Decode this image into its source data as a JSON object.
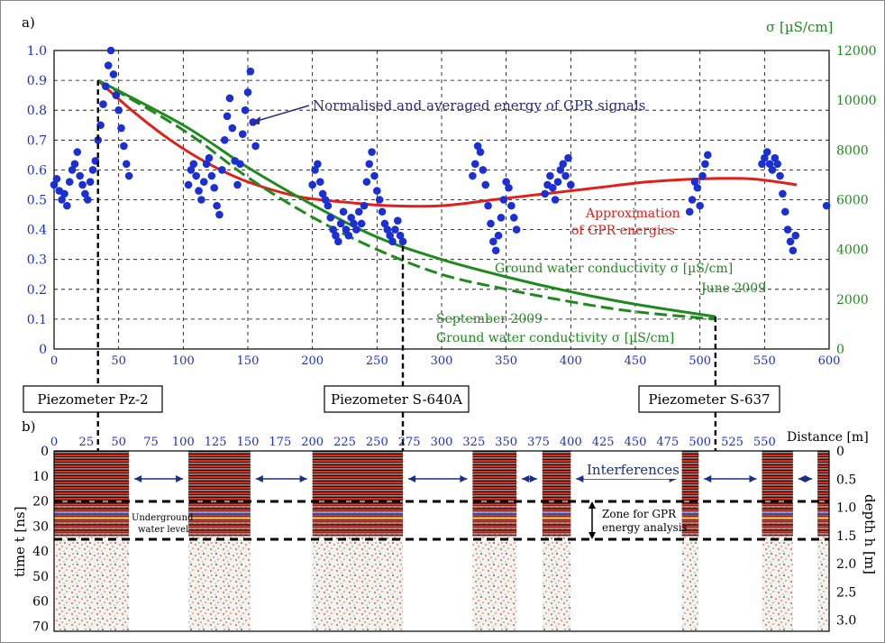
{
  "chart_data": [
    {
      "panel": "a)",
      "type": "scatter",
      "left_axis": {
        "ticks": [
          "0",
          "0.1",
          "0.2",
          "0.3",
          "0.4",
          "0.5",
          "0.6",
          "0.7",
          "0.8",
          "0.9",
          "1.0"
        ],
        "ylim": [
          0,
          1.0
        ]
      },
      "right_axis": {
        "label": "σ [µS/cm]",
        "ticks": [
          "0",
          "2000",
          "4000",
          "6000",
          "8000",
          "10000",
          "12000"
        ],
        "ylim": [
          0,
          12000
        ]
      },
      "x_axis": {
        "ticks": [
          "0",
          "50",
          "100",
          "150",
          "200",
          "250",
          "300",
          "350",
          "400",
          "450",
          "500",
          "550",
          "600"
        ],
        "xlim": [
          0,
          600
        ]
      },
      "grid": true,
      "series": [
        {
          "name": "Normalised and averaged energy of GPR signals",
          "color": "#1a2fd6",
          "kind": "points",
          "points": [
            [
              0,
              0.55
            ],
            [
              2,
              0.57
            ],
            [
              4,
              0.53
            ],
            [
              6,
              0.5
            ],
            [
              8,
              0.52
            ],
            [
              10,
              0.48
            ],
            [
              12,
              0.56
            ],
            [
              14,
              0.6
            ],
            [
              16,
              0.62
            ],
            [
              18,
              0.66
            ],
            [
              20,
              0.58
            ],
            [
              22,
              0.55
            ],
            [
              24,
              0.52
            ],
            [
              26,
              0.5
            ],
            [
              28,
              0.56
            ],
            [
              30,
              0.6
            ],
            [
              32,
              0.63
            ],
            [
              34,
              0.7
            ],
            [
              36,
              0.75
            ],
            [
              38,
              0.82
            ],
            [
              40,
              0.88
            ],
            [
              42,
              0.95
            ],
            [
              44,
              1.0
            ],
            [
              46,
              0.92
            ],
            [
              48,
              0.85
            ],
            [
              50,
              0.8
            ],
            [
              52,
              0.74
            ],
            [
              54,
              0.68
            ],
            [
              56,
              0.62
            ],
            [
              58,
              0.58
            ],
            [
              104,
              0.55
            ],
            [
              106,
              0.6
            ],
            [
              108,
              0.62
            ],
            [
              110,
              0.58
            ],
            [
              112,
              0.53
            ],
            [
              114,
              0.5
            ],
            [
              116,
              0.56
            ],
            [
              118,
              0.62
            ],
            [
              120,
              0.64
            ],
            [
              122,
              0.58
            ],
            [
              124,
              0.54
            ],
            [
              126,
              0.48
            ],
            [
              128,
              0.45
            ],
            [
              130,
              0.6
            ],
            [
              132,
              0.7
            ],
            [
              134,
              0.78
            ],
            [
              136,
              0.84
            ],
            [
              138,
              0.74
            ],
            [
              140,
              0.63
            ],
            [
              142,
              0.55
            ],
            [
              144,
              0.62
            ],
            [
              146,
              0.72
            ],
            [
              148,
              0.8
            ],
            [
              150,
              0.86
            ],
            [
              152,
              0.93
            ],
            [
              154,
              0.76
            ],
            [
              156,
              0.68
            ],
            [
              200,
              0.55
            ],
            [
              202,
              0.6
            ],
            [
              204,
              0.62
            ],
            [
              206,
              0.56
            ],
            [
              208,
              0.52
            ],
            [
              210,
              0.5
            ],
            [
              212,
              0.48
            ],
            [
              214,
              0.44
            ],
            [
              216,
              0.4
            ],
            [
              218,
              0.38
            ],
            [
              220,
              0.36
            ],
            [
              222,
              0.42
            ],
            [
              224,
              0.46
            ],
            [
              226,
              0.4
            ],
            [
              228,
              0.38
            ],
            [
              230,
              0.44
            ],
            [
              232,
              0.42
            ],
            [
              234,
              0.4
            ],
            [
              236,
              0.46
            ],
            [
              238,
              0.42
            ],
            [
              240,
              0.48
            ],
            [
              242,
              0.56
            ],
            [
              244,
              0.62
            ],
            [
              246,
              0.66
            ],
            [
              248,
              0.58
            ],
            [
              250,
              0.53
            ],
            [
              252,
              0.5
            ],
            [
              254,
              0.46
            ],
            [
              256,
              0.42
            ],
            [
              258,
              0.4
            ],
            [
              260,
              0.38
            ],
            [
              262,
              0.36
            ],
            [
              264,
              0.4
            ],
            [
              266,
              0.43
            ],
            [
              268,
              0.38
            ],
            [
              270,
              0.36
            ],
            [
              324,
              0.58
            ],
            [
              326,
              0.62
            ],
            [
              328,
              0.68
            ],
            [
              330,
              0.66
            ],
            [
              332,
              0.6
            ],
            [
              334,
              0.55
            ],
            [
              336,
              0.48
            ],
            [
              338,
              0.42
            ],
            [
              340,
              0.36
            ],
            [
              342,
              0.33
            ],
            [
              344,
              0.38
            ],
            [
              346,
              0.44
            ],
            [
              348,
              0.5
            ],
            [
              350,
              0.56
            ],
            [
              352,
              0.54
            ],
            [
              354,
              0.48
            ],
            [
              356,
              0.44
            ],
            [
              358,
              0.4
            ],
            [
              380,
              0.52
            ],
            [
              382,
              0.55
            ],
            [
              384,
              0.58
            ],
            [
              386,
              0.54
            ],
            [
              388,
              0.5
            ],
            [
              390,
              0.56
            ],
            [
              392,
              0.6
            ],
            [
              394,
              0.62
            ],
            [
              396,
              0.58
            ],
            [
              398,
              0.64
            ],
            [
              400,
              0.55
            ],
            [
              492,
              0.46
            ],
            [
              494,
              0.5
            ],
            [
              496,
              0.56
            ],
            [
              498,
              0.54
            ],
            [
              500,
              0.48
            ],
            [
              502,
              0.58
            ],
            [
              504,
              0.62
            ],
            [
              506,
              0.65
            ],
            [
              548,
              0.62
            ],
            [
              550,
              0.64
            ],
            [
              552,
              0.66
            ],
            [
              554,
              0.62
            ],
            [
              556,
              0.6
            ],
            [
              558,
              0.64
            ],
            [
              560,
              0.62
            ],
            [
              562,
              0.58
            ],
            [
              564,
              0.52
            ],
            [
              566,
              0.46
            ],
            [
              568,
              0.4
            ],
            [
              570,
              0.36
            ],
            [
              572,
              0.33
            ],
            [
              574,
              0.38
            ],
            [
              598,
              0.48
            ]
          ]
        },
        {
          "name": "Approximation of GPR energies",
          "color": "#e0201b",
          "kind": "line",
          "points": [
            [
              34,
              0.9
            ],
            [
              60,
              0.8
            ],
            [
              90,
              0.7
            ],
            [
              120,
              0.62
            ],
            [
              150,
              0.56
            ],
            [
              190,
              0.51
            ],
            [
              230,
              0.49
            ],
            [
              260,
              0.48
            ],
            [
              300,
              0.48
            ],
            [
              340,
              0.5
            ],
            [
              380,
              0.52
            ],
            [
              420,
              0.54
            ],
            [
              460,
              0.56
            ],
            [
              500,
              0.57
            ],
            [
              540,
              0.57
            ],
            [
              575,
              0.55
            ]
          ]
        },
        {
          "name": "Ground water conductivity σ [µS/cm] June 2009",
          "color": "#1e8a1e",
          "kind": "line",
          "axis": "right",
          "points": [
            [
              34,
              10800
            ],
            [
              100,
              9000
            ],
            [
              150,
              7300
            ],
            [
              200,
              5800
            ],
            [
              250,
              4500
            ],
            [
              300,
              3600
            ],
            [
              350,
              2900
            ],
            [
              400,
              2300
            ],
            [
              450,
              1800
            ],
            [
              512,
              1300
            ]
          ]
        },
        {
          "name": "September 2009 Ground water conductivity σ [µS/cm]",
          "color": "#1e8a1e",
          "kind": "dashed",
          "axis": "right",
          "points": [
            [
              34,
              10800
            ],
            [
              100,
              8800
            ],
            [
              150,
              6900
            ],
            [
              200,
              5300
            ],
            [
              250,
              4000
            ],
            [
              300,
              3000
            ],
            [
              350,
              2400
            ],
            [
              400,
              1900
            ],
            [
              450,
              1500
            ],
            [
              512,
              1200
            ]
          ]
        }
      ],
      "annotations": {
        "energy_label": "Normalised and averaged energy of GPR signals",
        "approx_line1": "Approximation",
        "approx_line2": "of GPR energies",
        "june_line1": "Ground water conductivity σ [µS/cm]",
        "june_line2": "June 2009",
        "sept_line1": "September 2009",
        "sept_line2": "Ground water conductivity σ [µS/cm]"
      },
      "piezometers": [
        {
          "label": "Piezometer Pz-2",
          "x": 34
        },
        {
          "label": "Piezometer S-640A",
          "x": 270
        },
        {
          "label": "Piezometer S-637",
          "x": 512
        }
      ]
    },
    {
      "panel": "b)",
      "type": "heatmap",
      "x_axis": {
        "label": "Distance [m]",
        "ticks": [
          "0",
          "25",
          "50",
          "75",
          "100",
          "125",
          "150",
          "175",
          "200",
          "225",
          "250",
          "275",
          "300",
          "325",
          "350",
          "375",
          "400",
          "425",
          "450",
          "475",
          "500",
          "525",
          "550"
        ],
        "xlim": [
          0,
          600
        ]
      },
      "left_axis": {
        "label": "time t [ns]",
        "ticks": [
          "0",
          "10",
          "20",
          "30",
          "40",
          "50",
          "60",
          "70"
        ],
        "ylim": [
          0,
          72
        ]
      },
      "right_axis": {
        "label": "depth h [m]",
        "ticks": [
          "0",
          "0.5",
          "1.0",
          "1.5",
          "2.0",
          "2.5",
          "3.0"
        ],
        "ylim": [
          0,
          3.2
        ]
      },
      "radargram_segments": [
        [
          0,
          58
        ],
        [
          104,
          152
        ],
        [
          200,
          270
        ],
        [
          324,
          358
        ],
        [
          378,
          400
        ],
        [
          486,
          499
        ],
        [
          548,
          572
        ],
        [
          591,
          600
        ]
      ],
      "interference_gaps": [
        [
          58,
          104
        ],
        [
          152,
          200
        ],
        [
          270,
          324
        ],
        [
          358,
          378
        ],
        [
          400,
          486
        ],
        [
          499,
          548
        ],
        [
          572,
          591
        ]
      ],
      "zone_ns": [
        20,
        35
      ],
      "annotations": {
        "interferences": "Interferences",
        "zone_line1": "Zone for GPR",
        "zone_line2": "energy analysis",
        "gw_line1": "Underground",
        "gw_line2": "water level"
      }
    }
  ]
}
